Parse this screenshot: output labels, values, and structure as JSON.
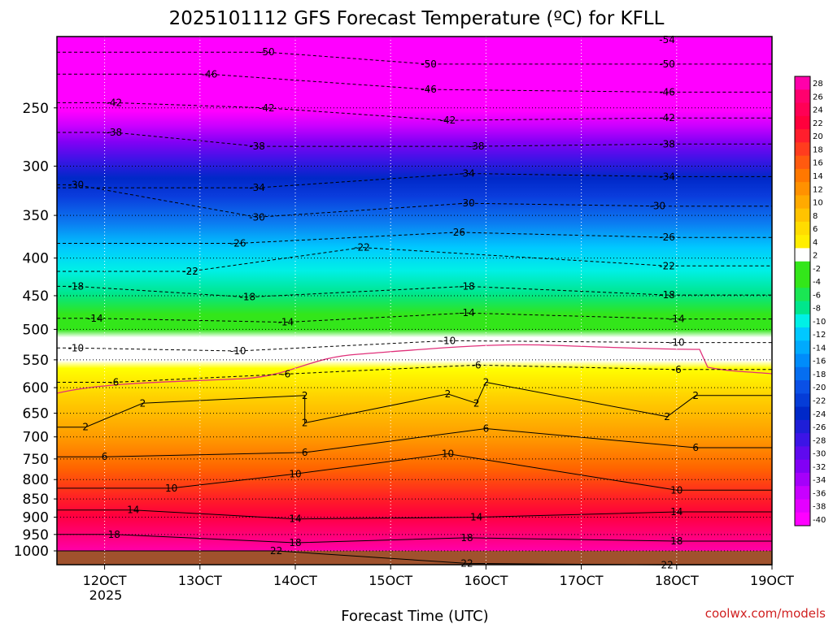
{
  "chart_data": {
    "type": "heatmap",
    "title": "2025101112 GFS Forecast Temperature (ºC) for KFLL",
    "xlabel": "Forecast Time (UTC)",
    "ylabel": "",
    "x_ticks": [
      "12OCT",
      "13OCT",
      "14OCT",
      "15OCT",
      "16OCT",
      "17OCT",
      "18OCT",
      "19OCT"
    ],
    "x_year_label": "2025",
    "xlim_days": [
      11.5,
      19.0
    ],
    "y_ticks": [
      "250",
      "300",
      "350",
      "400",
      "450",
      "500",
      "550",
      "600",
      "650",
      "700",
      "750",
      "800",
      "850",
      "900",
      "950",
      "1000"
    ],
    "ylim_hpa": [
      200,
      1000
    ],
    "y_scale": "log-pressure",
    "colorbar_labels": [
      "28",
      "26",
      "24",
      "22",
      "20",
      "18",
      "16",
      "14",
      "12",
      "10",
      "8",
      "6",
      "4",
      "2",
      "-2",
      "-4",
      "-6",
      "-8",
      "-10",
      "-12",
      "-14",
      "-16",
      "-18",
      "-20",
      "-22",
      "-24",
      "-26",
      "-28",
      "-30",
      "-32",
      "-34",
      "-36",
      "-38",
      "-40"
    ],
    "contour_labels": [
      {
        "text": "-54",
        "day": 17.9,
        "p": 202
      },
      {
        "text": "-50",
        "day": 13.7,
        "p": 210
      },
      {
        "text": "-50",
        "day": 15.4,
        "p": 218
      },
      {
        "text": "-50",
        "day": 17.9,
        "p": 218
      },
      {
        "text": "-46",
        "day": 13.1,
        "p": 225
      },
      {
        "text": "-46",
        "day": 15.4,
        "p": 236
      },
      {
        "text": "-46",
        "day": 17.9,
        "p": 238
      },
      {
        "text": "-42",
        "day": 12.1,
        "p": 246
      },
      {
        "text": "-42",
        "day": 13.7,
        "p": 250
      },
      {
        "text": "-42",
        "day": 15.6,
        "p": 260
      },
      {
        "text": "-42",
        "day": 17.9,
        "p": 258
      },
      {
        "text": "-38",
        "day": 12.1,
        "p": 270
      },
      {
        "text": "-38",
        "day": 13.6,
        "p": 282
      },
      {
        "text": "-38",
        "day": 15.9,
        "p": 282
      },
      {
        "text": "-38",
        "day": 17.9,
        "p": 280
      },
      {
        "text": "-34",
        "day": 15.8,
        "p": 307
      },
      {
        "text": "-34",
        "day": 13.6,
        "p": 321
      },
      {
        "text": "-34",
        "day": 17.9,
        "p": 310
      },
      {
        "text": "-30",
        "day": 11.7,
        "p": 318
      },
      {
        "text": "-30",
        "day": 15.8,
        "p": 337
      },
      {
        "text": "-30",
        "day": 13.6,
        "p": 352
      },
      {
        "text": "-30",
        "day": 17.8,
        "p": 340
      },
      {
        "text": "-26",
        "day": 15.7,
        "p": 369
      },
      {
        "text": "-26",
        "day": 13.4,
        "p": 382
      },
      {
        "text": "-26",
        "day": 17.9,
        "p": 375
      },
      {
        "text": "-22",
        "day": 14.7,
        "p": 387
      },
      {
        "text": "-22",
        "day": 12.9,
        "p": 417
      },
      {
        "text": "-22",
        "day": 17.9,
        "p": 410
      },
      {
        "text": "-18",
        "day": 11.7,
        "p": 437
      },
      {
        "text": "-18",
        "day": 15.8,
        "p": 437
      },
      {
        "text": "-18",
        "day": 13.5,
        "p": 452
      },
      {
        "text": "-18",
        "day": 17.9,
        "p": 449
      },
      {
        "text": "-14",
        "day": 11.9,
        "p": 483
      },
      {
        "text": "-14",
        "day": 15.8,
        "p": 475
      },
      {
        "text": "-14",
        "day": 13.9,
        "p": 489
      },
      {
        "text": "-14",
        "day": 18.0,
        "p": 484
      },
      {
        "text": "-10",
        "day": 11.7,
        "p": 530
      },
      {
        "text": "-10",
        "day": 15.6,
        "p": 518
      },
      {
        "text": "-10",
        "day": 13.4,
        "p": 535
      },
      {
        "text": "-10",
        "day": 18.0,
        "p": 521
      },
      {
        "text": "-6",
        "day": 12.1,
        "p": 590
      },
      {
        "text": "-6",
        "day": 15.9,
        "p": 559
      },
      {
        "text": "-6",
        "day": 13.9,
        "p": 575
      },
      {
        "text": "-6",
        "day": 18.0,
        "p": 567
      },
      {
        "text": "2",
        "day": 12.4,
        "p": 630
      },
      {
        "text": "2",
        "day": 14.1,
        "p": 615
      },
      {
        "text": "2",
        "day": 15.6,
        "p": 612
      },
      {
        "text": "2",
        "day": 16.0,
        "p": 590
      },
      {
        "text": "2",
        "day": 18.2,
        "p": 615
      },
      {
        "text": "2",
        "day": 11.8,
        "p": 679
      },
      {
        "text": "2",
        "day": 14.1,
        "p": 670
      },
      {
        "text": "2",
        "day": 15.9,
        "p": 630
      },
      {
        "text": "2",
        "day": 17.9,
        "p": 657
      },
      {
        "text": "6",
        "day": 12.0,
        "p": 745
      },
      {
        "text": "6",
        "day": 14.1,
        "p": 735
      },
      {
        "text": "6",
        "day": 16.0,
        "p": 682
      },
      {
        "text": "6",
        "day": 18.2,
        "p": 724
      },
      {
        "text": "10",
        "day": 12.7,
        "p": 822
      },
      {
        "text": "10",
        "day": 14.0,
        "p": 786
      },
      {
        "text": "10",
        "day": 15.6,
        "p": 738
      },
      {
        "text": "10",
        "day": 18.0,
        "p": 827
      },
      {
        "text": "14",
        "day": 12.3,
        "p": 880
      },
      {
        "text": "14",
        "day": 14.0,
        "p": 905
      },
      {
        "text": "14",
        "day": 15.9,
        "p": 900
      },
      {
        "text": "14",
        "day": 18.0,
        "p": 885
      },
      {
        "text": "18",
        "day": 12.1,
        "p": 950
      },
      {
        "text": "18",
        "day": 14.0,
        "p": 975
      },
      {
        "text": "18",
        "day": 15.8,
        "p": 960
      },
      {
        "text": "18",
        "day": 18.0,
        "p": 970
      },
      {
        "text": "22",
        "day": 13.8,
        "p": 1000
      },
      {
        "text": "22",
        "day": 15.8,
        "p": 1040
      },
      {
        "text": "22",
        "day": 17.9,
        "p": 1045
      }
    ],
    "grid": true,
    "colorbar_placement": "right"
  },
  "footer": {
    "credit": "coolwx.com/models"
  }
}
